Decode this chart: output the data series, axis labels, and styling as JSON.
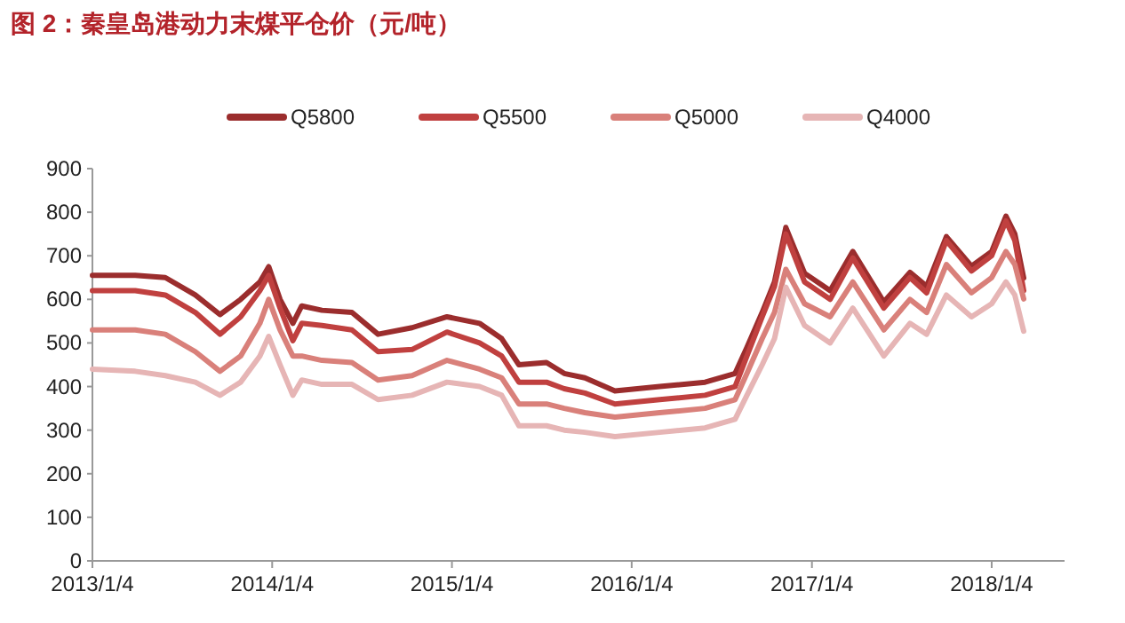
{
  "chart_data": {
    "type": "line",
    "title": "图 2：秦皇岛港动力末煤平仓价（元/吨）",
    "x": [
      "2013-01-04",
      "2013-04-01",
      "2013-06-01",
      "2013-08-01",
      "2013-09-20",
      "2013-11-01",
      "2013-12-10",
      "2013-12-28",
      "2014-01-20",
      "2014-02-15",
      "2014-03-05",
      "2014-04-15",
      "2014-06-15",
      "2014-08-07",
      "2014-10-15",
      "2014-12-25",
      "2015-03-01",
      "2015-04-15",
      "2015-05-20",
      "2015-07-15",
      "2015-08-20",
      "2015-10-01",
      "2015-12-01",
      "2016-03-01",
      "2016-06-01",
      "2016-08-01",
      "2016-08-25",
      "2016-09-25",
      "2016-10-20",
      "2016-11-12",
      "2016-12-20",
      "2017-02-10",
      "2017-03-28",
      "2017-05-30",
      "2017-07-22",
      "2017-08-25",
      "2017-10-04",
      "2017-11-24",
      "2018-01-04",
      "2018-02-02",
      "2018-02-20",
      "2018-03-10"
    ],
    "series": [
      {
        "name": "Q5800",
        "color": "#9b2d2d",
        "values": [
          655,
          655,
          650,
          610,
          565,
          600,
          640,
          675,
          600,
          545,
          585,
          575,
          570,
          520,
          535,
          560,
          545,
          510,
          450,
          455,
          430,
          420,
          390,
          400,
          410,
          430,
          490,
          570,
          640,
          765,
          660,
          620,
          710,
          594,
          662,
          630,
          744,
          676,
          710,
          791,
          750,
          649
        ]
      },
      {
        "name": "Q5500",
        "color": "#c0403f",
        "values": [
          620,
          620,
          610,
          570,
          520,
          560,
          620,
          655,
          580,
          505,
          545,
          540,
          530,
          480,
          485,
          525,
          500,
          470,
          410,
          410,
          395,
          385,
          360,
          370,
          380,
          400,
          470,
          560,
          630,
          750,
          640,
          600,
          695,
          580,
          650,
          615,
          735,
          665,
          700,
          780,
          735,
          620
        ]
      },
      {
        "name": "Q5000",
        "color": "#d9807a",
        "values": [
          530,
          530,
          520,
          480,
          435,
          470,
          545,
          600,
          530,
          470,
          470,
          460,
          455,
          415,
          425,
          460,
          440,
          420,
          360,
          360,
          350,
          340,
          330,
          340,
          350,
          370,
          430,
          510,
          570,
          669,
          590,
          560,
          640,
          530,
          600,
          570,
          680,
          615,
          650,
          710,
          680,
          601
        ]
      },
      {
        "name": "Q4000",
        "color": "#e6b5b5",
        "values": [
          440,
          435,
          425,
          410,
          380,
          410,
          470,
          515,
          450,
          380,
          415,
          405,
          405,
          370,
          380,
          410,
          400,
          380,
          310,
          310,
          300,
          295,
          285,
          295,
          305,
          325,
          380,
          450,
          510,
          628,
          540,
          500,
          580,
          470,
          545,
          520,
          610,
          560,
          590,
          640,
          610,
          527
        ]
      }
    ],
    "xlim": [
      "2013-01-04",
      "2018-06-01"
    ],
    "xticks": [
      {
        "value": "2013-01-04",
        "label": "2013/1/4"
      },
      {
        "value": "2014-01-04",
        "label": "2014/1/4"
      },
      {
        "value": "2015-01-04",
        "label": "2015/1/4"
      },
      {
        "value": "2016-01-04",
        "label": "2016/1/4"
      },
      {
        "value": "2017-01-04",
        "label": "2017/1/4"
      },
      {
        "value": "2018-01-04",
        "label": "2018/1/4"
      }
    ],
    "ylim": [
      0,
      900
    ],
    "yticks": [
      0,
      100,
      200,
      300,
      400,
      500,
      600,
      700,
      800,
      900
    ],
    "legend": "top",
    "grid": false,
    "line_style": "solid",
    "marker": "none"
  }
}
